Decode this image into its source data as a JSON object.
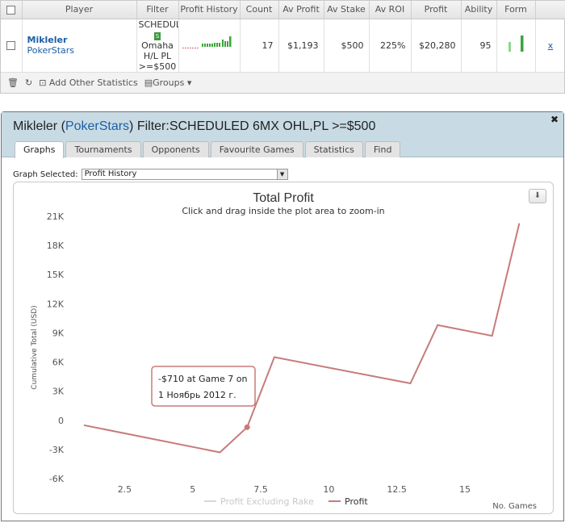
{
  "table": {
    "headers": [
      "",
      "Player",
      "Filter",
      "Profit History",
      "Count",
      "Av Profit",
      "Av Stake",
      "Av ROI",
      "Profit",
      "Ability",
      "Form",
      ""
    ],
    "row": {
      "player": "Mikleler",
      "site": "PokerStars",
      "filter_lines": [
        "SCHEDUL",
        "Omaha",
        "H/L PL",
        ">=$500"
      ],
      "filter_badge": "S",
      "count": "17",
      "av_profit": "$1,193",
      "av_stake": "$500",
      "av_roi": "225%",
      "profit": "$20,280",
      "ability": "95",
      "close": "x"
    }
  },
  "footer": {
    "add_stats": "Add Other Statistics",
    "groups": "Groups"
  },
  "panel": {
    "title_player": "Mikleler",
    "title_site": "PokerStars",
    "title_filter": "Filter:SCHEDULED 6MX OHL,PL >=$500",
    "tabs": [
      "Graphs",
      "Tournaments",
      "Opponents",
      "Favourite Games",
      "Statistics",
      "Find"
    ],
    "active_tab": "Graphs",
    "graph_selected_label": "Graph Selected:",
    "graph_selected_value": "Profit History"
  },
  "chart_data": {
    "type": "line",
    "title": "Total Profit",
    "subtitle": "Click and drag inside the plot area to zoom-in",
    "ylabel": "Cumulative Total (USD)",
    "xlabel": "No. Games",
    "x_ticks": [
      "2.5",
      "5",
      "7.5",
      "10",
      "12.5",
      "15"
    ],
    "y_ticks": [
      "21K",
      "18K",
      "15K",
      "12K",
      "9K",
      "6K",
      "3K",
      "0",
      "-3K",
      "-6K"
    ],
    "xlim": [
      0.5,
      17.7
    ],
    "ylim": [
      -6000,
      21000
    ],
    "series": [
      {
        "name": "Profit Excluding Rake",
        "color": "#d8d8d8",
        "values": []
      },
      {
        "name": "Profit",
        "color": "#c77b7b",
        "x": [
          1,
          6,
          7,
          8,
          13,
          14,
          16,
          17
        ],
        "values": [
          -500,
          -3300,
          -710,
          6500,
          3800,
          9800,
          8700,
          20280
        ]
      }
    ],
    "tooltip": {
      "lines": [
        "-$710 at Game 7 on",
        "1 Ноябрь 2012 г."
      ],
      "x": 7,
      "y": -710
    },
    "legend": "bottom-center",
    "grid": false
  },
  "colors": {
    "accent": "#1b5fa8",
    "header_bg": "#c8dbe4",
    "line": "#c77b7b"
  }
}
